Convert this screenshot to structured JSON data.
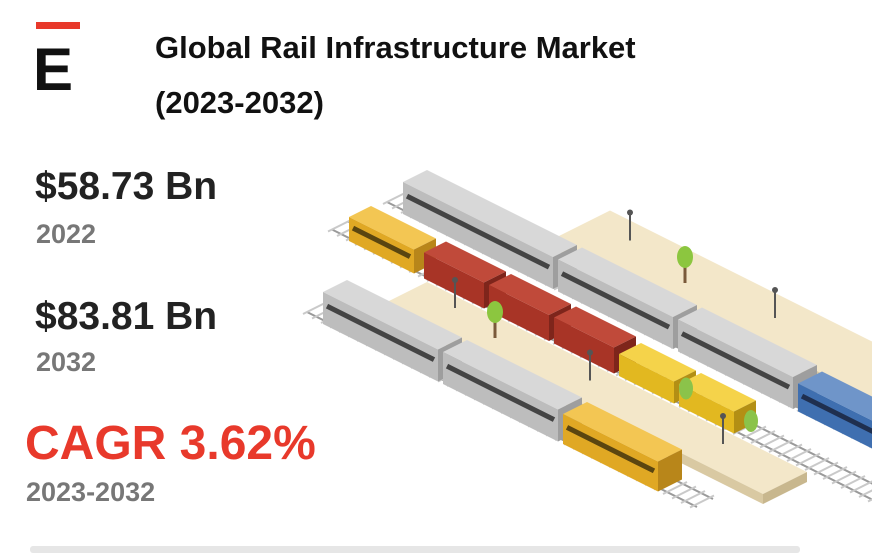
{
  "logo": "E",
  "title_lines": [
    "Global Rail Infrastructure Market",
    "(2023-2032)"
  ],
  "stats": [
    {
      "value": "$58.73 Bn",
      "year": "2022"
    },
    {
      "value": "$83.81 Bn",
      "year": "2032"
    }
  ],
  "cagr": {
    "value": "CAGR 3.62%",
    "period": "2023-2032"
  }
}
